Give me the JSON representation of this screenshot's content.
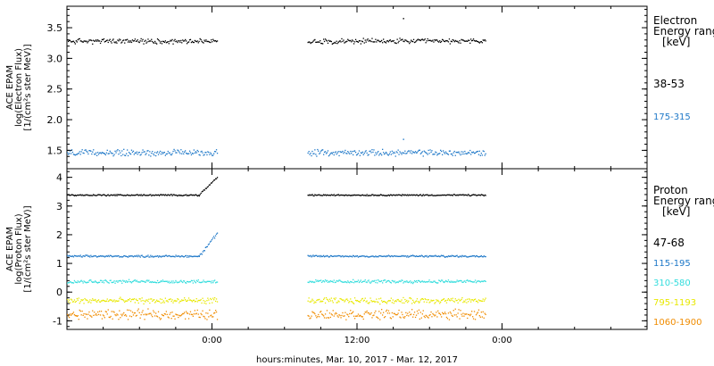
{
  "chart_data": [
    {
      "type": "scatter",
      "ylabel_lines": [
        "ACE EPAM",
        "log(Electron Flux)",
        "[1/(cm²s ster MeV)]"
      ],
      "ylim": [
        1.2,
        3.85
      ],
      "yticks": [
        "1.5",
        "2.0",
        "2.5",
        "3.0",
        "3.5"
      ],
      "ytick_values": [
        1.5,
        2.0,
        2.5,
        3.0,
        3.5
      ],
      "legend": {
        "title_lines": [
          "Electron",
          "Energy ranges",
          "[keV]"
        ],
        "placement": "right"
      },
      "series": [
        {
          "name": "38-53",
          "color": "#000000",
          "segments": [
            {
              "x_start": 0.0,
              "x_end": 12.4,
              "mean": 3.28,
              "spread": 0.05
            },
            {
              "x_start": 19.9,
              "x_end": 34.6,
              "mean": 3.28,
              "spread": 0.05
            }
          ],
          "outliers": [
            {
              "x": 27.8,
              "y": 3.65
            }
          ]
        },
        {
          "name": "175-315",
          "color": "#1e78c8",
          "segments": [
            {
              "x_start": 0.0,
              "x_end": 12.4,
              "mean": 1.46,
              "spread": 0.06
            },
            {
              "x_start": 19.9,
              "x_end": 34.6,
              "mean": 1.46,
              "spread": 0.06
            }
          ],
          "outliers": [
            {
              "x": 27.8,
              "y": 1.68
            }
          ]
        }
      ]
    },
    {
      "type": "scatter",
      "ylabel_lines": [
        "ACE EPAM",
        "log(Proton Flux)",
        "[1/(cm²s ster MeV)]"
      ],
      "ylim": [
        -1.3,
        4.3
      ],
      "yticks": [
        "-1",
        "0",
        "1",
        "2",
        "3",
        "4"
      ],
      "ytick_values": [
        -1,
        0,
        1,
        2,
        3,
        4
      ],
      "legend": {
        "title_lines": [
          "Proton",
          "Energy ranges",
          "[keV]"
        ],
        "placement": "right"
      },
      "series": [
        {
          "name": "47-68",
          "color": "#000000",
          "segments": [
            {
              "x_start": 0.0,
              "x_end": 10.9,
              "mean": 3.38,
              "spread": 0.03
            },
            {
              "x_start": 10.9,
              "x_end": 12.4,
              "mean": 3.38,
              "spread": 0.04,
              "rise_to": 4.0
            },
            {
              "x_start": 19.9,
              "x_end": 34.6,
              "mean": 3.38,
              "spread": 0.03
            }
          ]
        },
        {
          "name": "115-195",
          "color": "#1e78c8",
          "segments": [
            {
              "x_start": 0.0,
              "x_end": 10.9,
              "mean": 1.25,
              "spread": 0.04
            },
            {
              "x_start": 10.9,
              "x_end": 12.4,
              "mean": 1.25,
              "spread": 0.06,
              "rise_to": 2.05
            },
            {
              "x_start": 19.9,
              "x_end": 34.6,
              "mean": 1.25,
              "spread": 0.04
            }
          ]
        },
        {
          "name": "310-580",
          "color": "#33dddd",
          "segments": [
            {
              "x_start": 0.0,
              "x_end": 12.4,
              "mean": 0.37,
              "spread": 0.07
            },
            {
              "x_start": 19.9,
              "x_end": 34.6,
              "mean": 0.37,
              "spread": 0.07
            }
          ]
        },
        {
          "name": "795-1193",
          "color": "#e8e800",
          "segments": [
            {
              "x_start": 0.0,
              "x_end": 12.4,
              "mean": -0.3,
              "spread": 0.12
            },
            {
              "x_start": 19.9,
              "x_end": 34.6,
              "mean": -0.3,
              "spread": 0.12
            }
          ]
        },
        {
          "name": "1060-1900",
          "color": "#f08c00",
          "segments": [
            {
              "x_start": 0.0,
              "x_end": 12.4,
              "mean": -0.78,
              "spread": 0.2
            },
            {
              "x_start": 19.9,
              "x_end": 34.6,
              "mean": -0.78,
              "spread": 0.2
            }
          ]
        }
      ]
    }
  ],
  "x_axis": {
    "label": "hours:minutes, Mar. 10, 2017 - Mar. 12, 2017",
    "range_hours": [
      0,
      48
    ],
    "tick_labels": [
      "0:00",
      "12:00",
      "0:00"
    ],
    "tick_hours": [
      12,
      24,
      36
    ]
  }
}
